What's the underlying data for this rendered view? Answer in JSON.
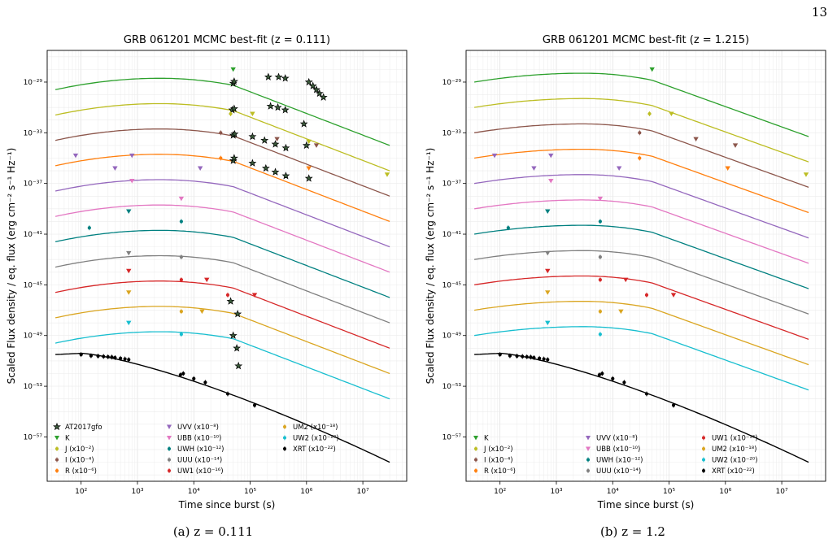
{
  "page_number": "13",
  "captions": [
    "(a) z = 0.111",
    "(b) z = 1.2"
  ],
  "colors": {
    "K": "#2ca02c",
    "J": "#bcbd22",
    "I": "#8c564b",
    "R": "#ff7f0e",
    "UVV": "#9467bd",
    "UBB": "#e377c2",
    "UWH": "#008080",
    "UUU": "#7f7f7f",
    "UW1": "#d62728",
    "UM2": "#daa520",
    "UW2": "#17becf",
    "XRT": "#000000",
    "AT2017gfo": "#000000"
  },
  "chart_data": [
    {
      "type": "line",
      "title": "GRB 061201 MCMC best-fit (z = 0.111)",
      "xlabel": "Time since burst (s)",
      "ylabel": "Scaled Flux density / eq. flux (erg cm⁻² s⁻¹ Hz⁻¹)",
      "x_scale": "log",
      "y_scale": "log",
      "xlim": [
        25,
        60000000
      ],
      "ylim_log10": [
        -60.5,
        -26.5
      ],
      "x_ticks": [
        "10²",
        "10³",
        "10⁴",
        "10⁵",
        "10⁶",
        "10⁷"
      ],
      "y_ticks": [
        "10⁻²⁹",
        "10⁻³³",
        "10⁻³⁷",
        "10⁻⁴¹",
        "10⁻⁴⁵",
        "10⁻⁴⁹",
        "10⁻⁵³",
        "10⁻⁵⁷"
      ],
      "legend_position": "lower-left",
      "legend": [
        "AT2017gfo",
        "K",
        "J (x10⁻²)",
        "I (x10⁻⁴)",
        "R (x10⁻⁶)",
        "UVV (x10⁻⁸)",
        "UBB (x10⁻¹⁰)",
        "UWH (x10⁻¹²)",
        "UUU (x10⁻¹⁴)",
        "UW1 (x10⁻¹⁶)",
        "UM2 (x10⁻¹⁸)",
        "UW2 (x10⁻²⁰)",
        "XRT (x10⁻²²)"
      ],
      "model": {
        "t_peak": 2500,
        "t_break": 50000,
        "t_end": 30000000,
        "K_log10_at_35s": -29.6,
        "K_log10_peak": -28.7,
        "K_log10_end": -34.0,
        "band_offset_log10": -2.0,
        "xrt": {
          "log10_at_35s": -50.5,
          "t_peak": 100,
          "log10_end": -59.0
        }
      },
      "kilonova": [
        {
          "t": 50000,
          "log10": -29.1
        },
        {
          "t": 52000,
          "log10": -28.95
        },
        {
          "t": 48000,
          "log10": -31.2
        },
        {
          "t": 52000,
          "log10": -31.1
        },
        {
          "t": 50000,
          "log10": -33.2
        },
        {
          "t": 53000,
          "log10": -33.1
        },
        {
          "t": 50000,
          "log10": -35.2
        },
        {
          "t": 52000,
          "log10": -35.0
        },
        {
          "t": 210000,
          "log10": -28.6
        },
        {
          "t": 320000,
          "log10": -28.6
        },
        {
          "t": 420000,
          "log10": -28.7
        },
        {
          "t": 1100000,
          "log10": -29.0
        },
        {
          "t": 1300000,
          "log10": -29.3
        },
        {
          "t": 1500000,
          "log10": -29.6
        },
        {
          "t": 1700000,
          "log10": -29.9
        },
        {
          "t": 2000000,
          "log10": -30.2
        },
        {
          "t": 230000,
          "log10": -30.9
        },
        {
          "t": 310000,
          "log10": -31.0
        },
        {
          "t": 420000,
          "log10": -31.2
        },
        {
          "t": 110000,
          "log10": -33.3
        },
        {
          "t": 180000,
          "log10": -33.6
        },
        {
          "t": 280000,
          "log10": -33.9
        },
        {
          "t": 430000,
          "log10": -34.2
        },
        {
          "t": 110000,
          "log10": -35.4
        },
        {
          "t": 190000,
          "log10": -35.8
        },
        {
          "t": 280000,
          "log10": -36.1
        },
        {
          "t": 430000,
          "log10": -36.4
        },
        {
          "t": 900000,
          "log10": -32.3
        },
        {
          "t": 1000000,
          "log10": -34.0
        },
        {
          "t": 1100000,
          "log10": -36.6
        },
        {
          "t": 45000,
          "log10": -46.3
        },
        {
          "t": 60000,
          "log10": -47.3
        },
        {
          "t": 50000,
          "log10": -49.0
        },
        {
          "t": 58000,
          "log10": -50.0
        },
        {
          "t": 62000,
          "log10": -51.4
        }
      ],
      "points": [
        {
          "band": "K",
          "t": 50000,
          "log10": -28.0,
          "up": true
        },
        {
          "band": "J",
          "t": 45000,
          "log10": -31.5,
          "up": false
        },
        {
          "band": "J",
          "t": 110000,
          "log10": -31.5,
          "up": true
        },
        {
          "band": "J",
          "t": 1100000,
          "log10": -33.7,
          "up": true
        },
        {
          "band": "J",
          "t": 27000000,
          "log10": -36.3,
          "up": true
        },
        {
          "band": "I",
          "t": 30000,
          "log10": -33.0,
          "up": false
        },
        {
          "band": "I",
          "t": 300000,
          "log10": -33.5,
          "up": true
        },
        {
          "band": "I",
          "t": 1500000,
          "log10": -34.0,
          "up": true
        },
        {
          "band": "R",
          "t": 30000,
          "log10": -35.0,
          "up": false
        },
        {
          "band": "R",
          "t": 1100000,
          "log10": -35.8,
          "up": true
        },
        {
          "band": "UVV",
          "t": 80,
          "log10": -34.8,
          "up": true
        },
        {
          "band": "UVV",
          "t": 400,
          "log10": -35.8,
          "up": true
        },
        {
          "band": "UVV",
          "t": 800,
          "log10": -34.8,
          "up": true
        },
        {
          "band": "UVV",
          "t": 13000,
          "log10": -35.8,
          "up": true
        },
        {
          "band": "UBB",
          "t": 800,
          "log10": -36.8,
          "up": true
        },
        {
          "band": "UBB",
          "t": 6000,
          "log10": -38.2,
          "up": true
        },
        {
          "band": "UWH",
          "t": 140,
          "log10": -40.5,
          "up": false
        },
        {
          "band": "UWH",
          "t": 700,
          "log10": -39.2,
          "up": true
        },
        {
          "band": "UWH",
          "t": 6000,
          "log10": -40.0,
          "up": false
        },
        {
          "band": "UUU",
          "t": 700,
          "log10": -42.5,
          "up": true
        },
        {
          "band": "UUU",
          "t": 6000,
          "log10": -42.8,
          "up": false
        },
        {
          "band": "UW1",
          "t": 700,
          "log10": -43.9,
          "up": true
        },
        {
          "band": "UW1",
          "t": 6000,
          "log10": -44.6,
          "up": false
        },
        {
          "band": "UW1",
          "t": 17000,
          "log10": -44.6,
          "up": true
        },
        {
          "band": "UW1",
          "t": 40000,
          "log10": -45.8,
          "up": false
        },
        {
          "band": "UW1",
          "t": 120000,
          "log10": -45.8,
          "up": true
        },
        {
          "band": "UM2",
          "t": 700,
          "log10": -45.6,
          "up": true
        },
        {
          "band": "UM2",
          "t": 6000,
          "log10": -47.1,
          "up": false
        },
        {
          "band": "UM2",
          "t": 14000,
          "log10": -47.1,
          "up": true
        },
        {
          "band": "UW2",
          "t": 700,
          "log10": -48.0,
          "up": true
        },
        {
          "band": "UW2",
          "t": 6000,
          "log10": -48.9,
          "up": false
        },
        {
          "band": "XRT",
          "t": 100,
          "log10": -50.5,
          "up": false
        },
        {
          "band": "XRT",
          "t": 150,
          "log10": -50.6,
          "up": false
        },
        {
          "band": "XRT",
          "t": 200,
          "log10": -50.62,
          "up": false
        },
        {
          "band": "XRT",
          "t": 250,
          "log10": -50.65,
          "up": false
        },
        {
          "band": "XRT",
          "t": 300,
          "log10": -50.68,
          "up": false
        },
        {
          "band": "XRT",
          "t": 350,
          "log10": -50.7,
          "up": false
        },
        {
          "band": "XRT",
          "t": 400,
          "log10": -50.75,
          "up": false
        },
        {
          "band": "XRT",
          "t": 500,
          "log10": -50.8,
          "up": false
        },
        {
          "band": "XRT",
          "t": 600,
          "log10": -50.85,
          "up": false
        },
        {
          "band": "XRT",
          "t": 700,
          "log10": -50.9,
          "up": false
        },
        {
          "band": "XRT",
          "t": 5800,
          "log10": -52.1,
          "up": false
        },
        {
          "band": "XRT",
          "t": 6500,
          "log10": -52.0,
          "up": false
        },
        {
          "band": "XRT",
          "t": 10000,
          "log10": -52.4,
          "up": false
        },
        {
          "band": "XRT",
          "t": 16000,
          "log10": -52.7,
          "up": false
        },
        {
          "band": "XRT",
          "t": 40000,
          "log10": -53.6,
          "up": false
        },
        {
          "band": "XRT",
          "t": 120000,
          "log10": -54.5,
          "up": false
        }
      ]
    },
    {
      "type": "line",
      "title": "GRB 061201 MCMC best-fit (z = 1.215)",
      "xlabel": "Time since burst (s)",
      "ylabel": "Scaled Flux density / eq. flux (erg cm⁻² s⁻¹ Hz⁻¹)",
      "x_scale": "log",
      "y_scale": "log",
      "xlim": [
        25,
        60000000
      ],
      "ylim_log10": [
        -60.5,
        -26.5
      ],
      "x_ticks": [
        "10²",
        "10³",
        "10⁴",
        "10⁵",
        "10⁶",
        "10⁷"
      ],
      "y_ticks": [
        "10⁻²⁹",
        "10⁻³³",
        "10⁻³⁷",
        "10⁻⁴¹",
        "10⁻⁴⁵",
        "10⁻⁴⁹",
        "10⁻⁵³",
        "10⁻⁵⁷"
      ],
      "legend_position": "lower-left",
      "legend": [
        "K",
        "J (x10⁻²)",
        "I (x10⁻⁴)",
        "R (x10⁻⁶)",
        "UVV (x10⁻⁸)",
        "UBB (x10⁻¹⁰)",
        "UWH (x10⁻¹²)",
        "UUU (x10⁻¹⁴)",
        "UW1 (x10⁻¹⁶)",
        "UM2 (x10⁻¹⁸)",
        "UW2 (x10⁻²⁰)",
        "XRT (x10⁻²²)"
      ],
      "model": {
        "t_peak": 3000,
        "t_break": 50000,
        "t_end": 30000000,
        "K_log10_at_35s": -29.0,
        "K_log10_peak": -28.3,
        "K_log10_end": -33.3,
        "band_offset_log10": -2.0,
        "xrt": {
          "log10_at_35s": -50.5,
          "t_peak": 100,
          "log10_end": -59.0
        }
      },
      "kilonova": [],
      "points": [
        {
          "band": "K",
          "t": 50000,
          "log10": -28.0,
          "up": true
        },
        {
          "band": "J",
          "t": 45000,
          "log10": -31.5,
          "up": false
        },
        {
          "band": "J",
          "t": 110000,
          "log10": -31.5,
          "up": true
        },
        {
          "band": "J",
          "t": 27000000,
          "log10": -36.3,
          "up": true
        },
        {
          "band": "I",
          "t": 30000,
          "log10": -33.0,
          "up": false
        },
        {
          "band": "I",
          "t": 300000,
          "log10": -33.5,
          "up": true
        },
        {
          "band": "I",
          "t": 1500000,
          "log10": -34.0,
          "up": true
        },
        {
          "band": "R",
          "t": 30000,
          "log10": -35.0,
          "up": false
        },
        {
          "band": "R",
          "t": 1100000,
          "log10": -35.8,
          "up": true
        },
        {
          "band": "UVV",
          "t": 80,
          "log10": -34.8,
          "up": true
        },
        {
          "band": "UVV",
          "t": 400,
          "log10": -35.8,
          "up": true
        },
        {
          "band": "UVV",
          "t": 800,
          "log10": -34.8,
          "up": true
        },
        {
          "band": "UVV",
          "t": 13000,
          "log10": -35.8,
          "up": true
        },
        {
          "band": "UBB",
          "t": 800,
          "log10": -36.8,
          "up": true
        },
        {
          "band": "UBB",
          "t": 6000,
          "log10": -38.2,
          "up": true
        },
        {
          "band": "UWH",
          "t": 140,
          "log10": -40.5,
          "up": false
        },
        {
          "band": "UWH",
          "t": 700,
          "log10": -39.2,
          "up": true
        },
        {
          "band": "UWH",
          "t": 6000,
          "log10": -40.0,
          "up": false
        },
        {
          "band": "UUU",
          "t": 700,
          "log10": -42.5,
          "up": true
        },
        {
          "band": "UUU",
          "t": 6000,
          "log10": -42.8,
          "up": false
        },
        {
          "band": "UW1",
          "t": 700,
          "log10": -43.9,
          "up": true
        },
        {
          "band": "UW1",
          "t": 6000,
          "log10": -44.6,
          "up": false
        },
        {
          "band": "UW1",
          "t": 17000,
          "log10": -44.6,
          "up": true
        },
        {
          "band": "UW1",
          "t": 40000,
          "log10": -45.8,
          "up": false
        },
        {
          "band": "UW1",
          "t": 120000,
          "log10": -45.8,
          "up": true
        },
        {
          "band": "UM2",
          "t": 700,
          "log10": -45.6,
          "up": true
        },
        {
          "band": "UM2",
          "t": 6000,
          "log10": -47.1,
          "up": false
        },
        {
          "band": "UM2",
          "t": 14000,
          "log10": -47.1,
          "up": true
        },
        {
          "band": "UW2",
          "t": 700,
          "log10": -48.0,
          "up": true
        },
        {
          "band": "UW2",
          "t": 6000,
          "log10": -48.9,
          "up": false
        },
        {
          "band": "XRT",
          "t": 100,
          "log10": -50.5,
          "up": false
        },
        {
          "band": "XRT",
          "t": 150,
          "log10": -50.6,
          "up": false
        },
        {
          "band": "XRT",
          "t": 200,
          "log10": -50.62,
          "up": false
        },
        {
          "band": "XRT",
          "t": 250,
          "log10": -50.65,
          "up": false
        },
        {
          "band": "XRT",
          "t": 300,
          "log10": -50.68,
          "up": false
        },
        {
          "band": "XRT",
          "t": 350,
          "log10": -50.7,
          "up": false
        },
        {
          "band": "XRT",
          "t": 400,
          "log10": -50.75,
          "up": false
        },
        {
          "band": "XRT",
          "t": 500,
          "log10": -50.8,
          "up": false
        },
        {
          "band": "XRT",
          "t": 600,
          "log10": -50.85,
          "up": false
        },
        {
          "band": "XRT",
          "t": 700,
          "log10": -50.9,
          "up": false
        },
        {
          "band": "XRT",
          "t": 5800,
          "log10": -52.1,
          "up": false
        },
        {
          "band": "XRT",
          "t": 6500,
          "log10": -52.0,
          "up": false
        },
        {
          "band": "XRT",
          "t": 10000,
          "log10": -52.4,
          "up": false
        },
        {
          "band": "XRT",
          "t": 16000,
          "log10": -52.7,
          "up": false
        },
        {
          "band": "XRT",
          "t": 40000,
          "log10": -53.6,
          "up": false
        },
        {
          "band": "XRT",
          "t": 120000,
          "log10": -54.5,
          "up": false
        }
      ]
    }
  ]
}
